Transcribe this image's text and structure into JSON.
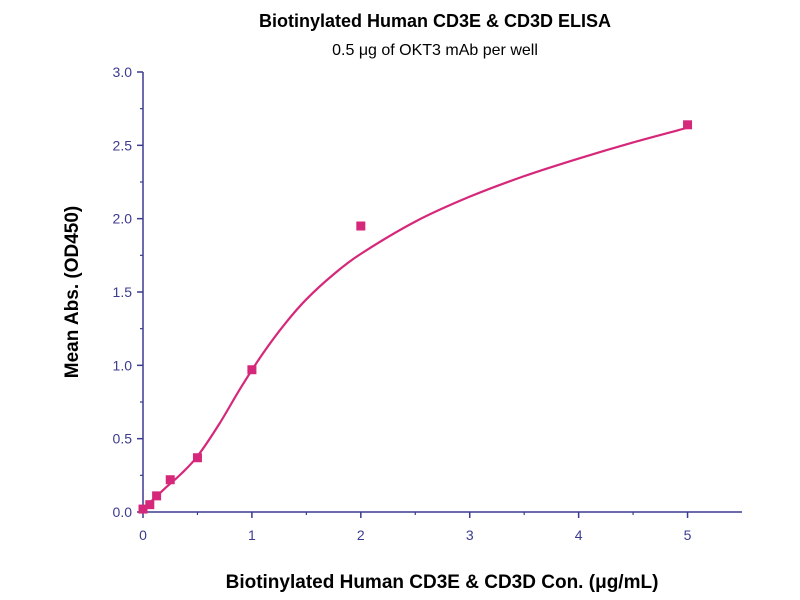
{
  "chart_data": {
    "type": "line",
    "title": "Biotinylated Human CD3E & CD3D ELISA",
    "subtitle": "0.5 μg of OKT3 mAb per well",
    "xlabel": "Biotinylated Human CD3E & CD3D Con. (μg/mL)",
    "ylabel": "Mean Abs. (OD450)",
    "xlim": [
      0,
      5.5
    ],
    "ylim": [
      0,
      3.0
    ],
    "x_ticks": [
      0,
      1,
      2,
      3,
      4,
      5
    ],
    "y_ticks": [
      0.0,
      0.5,
      1.0,
      1.5,
      2.0,
      2.5,
      3.0
    ],
    "x_tick_labels": [
      "0",
      "1",
      "2",
      "3",
      "4",
      "5"
    ],
    "y_tick_labels": [
      "0.0",
      "0.5",
      "1.0",
      "1.5",
      "2.0",
      "2.5",
      "3.0"
    ],
    "grid": false,
    "points": [
      {
        "x": 0.0,
        "y": 0.02
      },
      {
        "x": 0.0625,
        "y": 0.05
      },
      {
        "x": 0.125,
        "y": 0.11
      },
      {
        "x": 0.25,
        "y": 0.22
      },
      {
        "x": 0.5,
        "y": 0.37
      },
      {
        "x": 1.0,
        "y": 0.97
      },
      {
        "x": 2.0,
        "y": 1.95
      },
      {
        "x": 5.0,
        "y": 2.64
      }
    ],
    "fit_curve": [
      {
        "x": 0.0,
        "y": 0.02
      },
      {
        "x": 0.1,
        "y": 0.09
      },
      {
        "x": 0.2,
        "y": 0.16
      },
      {
        "x": 0.35,
        "y": 0.26
      },
      {
        "x": 0.5,
        "y": 0.38
      },
      {
        "x": 0.7,
        "y": 0.6
      },
      {
        "x": 0.9,
        "y": 0.85
      },
      {
        "x": 1.1,
        "y": 1.08
      },
      {
        "x": 1.3,
        "y": 1.28
      },
      {
        "x": 1.5,
        "y": 1.45
      },
      {
        "x": 1.75,
        "y": 1.62
      },
      {
        "x": 2.0,
        "y": 1.76
      },
      {
        "x": 2.5,
        "y": 1.98
      },
      {
        "x": 3.0,
        "y": 2.15
      },
      {
        "x": 3.5,
        "y": 2.29
      },
      {
        "x": 4.0,
        "y": 2.41
      },
      {
        "x": 4.5,
        "y": 2.52
      },
      {
        "x": 5.0,
        "y": 2.62
      }
    ],
    "colors": {
      "series": "#d6287a",
      "axis": "#3b3b8f",
      "tick_text": "#3b3b8f"
    }
  }
}
